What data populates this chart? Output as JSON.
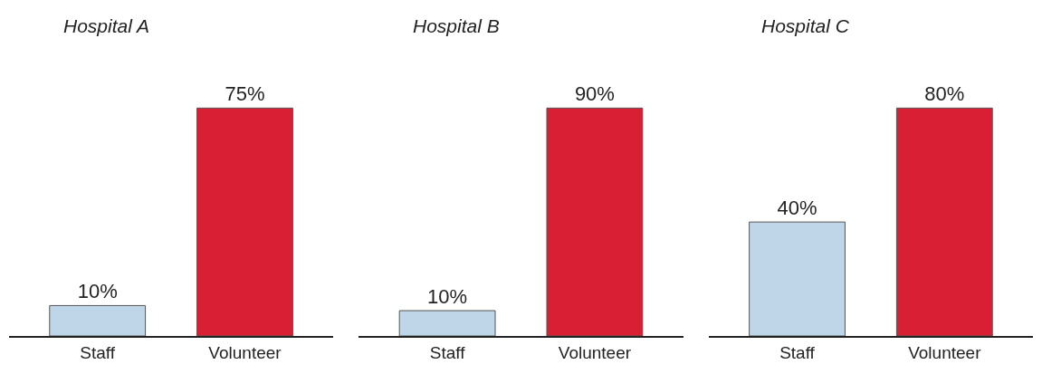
{
  "chart_data": [
    {
      "type": "bar",
      "title": "Hospital A",
      "categories": [
        "Staff",
        "Volunteer"
      ],
      "values": [
        10,
        75
      ],
      "value_labels": [
        "10%",
        "75%"
      ],
      "colors": [
        "#bfd5e8",
        "#d91f33"
      ]
    },
    {
      "type": "bar",
      "title": "Hospital B",
      "categories": [
        "Staff",
        "Volunteer"
      ],
      "values": [
        10,
        90
      ],
      "value_labels": [
        "10%",
        "90%"
      ],
      "colors": [
        "#bfd5e8",
        "#d91f33"
      ]
    },
    {
      "type": "bar",
      "title": "Hospital C",
      "categories": [
        "Staff",
        "Volunteer"
      ],
      "values": [
        40,
        80
      ],
      "value_labels": [
        "40%",
        "80%"
      ],
      "colors": [
        "#bfd5e8",
        "#d91f33"
      ]
    }
  ]
}
